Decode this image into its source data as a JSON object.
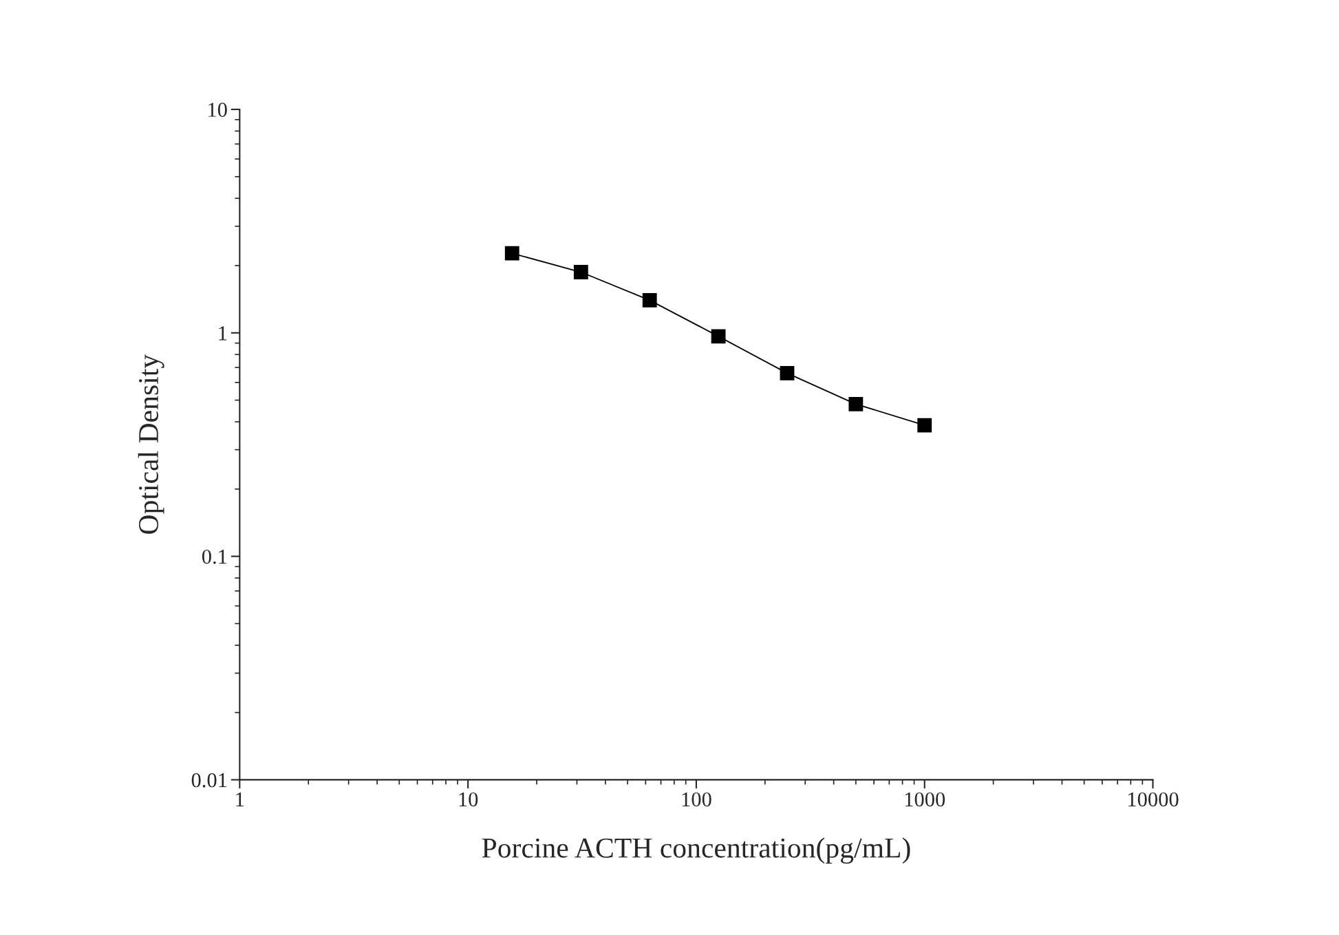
{
  "chart_data": {
    "type": "line",
    "xlabel": "Porcine ACTH concentration(pg/mL)",
    "ylabel": "Optical Density",
    "x": [
      15.6,
      31.25,
      62.5,
      125,
      250,
      500,
      1000
    ],
    "series": [
      {
        "color": "#000000",
        "values": [
          2.27,
          1.87,
          1.4,
          0.965,
          0.66,
          0.48,
          0.386
        ]
      }
    ],
    "log": "xy",
    "marker": "square",
    "line_style": "solid",
    "grid": false,
    "legend": false,
    "xlim": [
      1,
      10000
    ],
    "ylim": [
      0.01,
      10
    ],
    "xticks": [
      1,
      10,
      100,
      1000,
      10000
    ],
    "yticks": [
      0.01,
      0.1,
      1,
      10
    ]
  }
}
